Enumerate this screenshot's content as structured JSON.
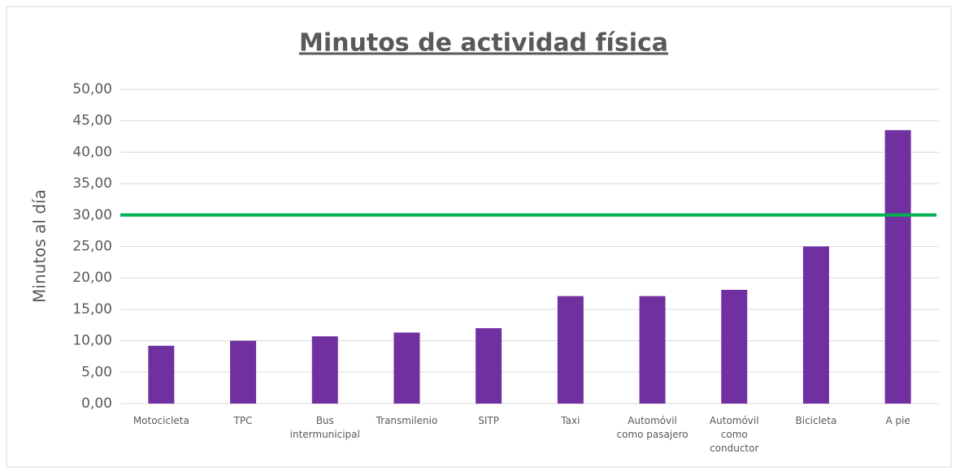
{
  "chart_data": {
    "type": "bar",
    "title": "Minutos de actividad física",
    "y_label": "Minutos al día",
    "categories": [
      "Motocicleta",
      "TPC",
      "Bus intermunicipal",
      "Transmilenio",
      "SITP",
      "Taxi",
      "Automóvil como pasajero",
      "Automóvil como conductor",
      "Bicicleta",
      "A pie"
    ],
    "values": [
      9.2,
      10.0,
      10.7,
      11.3,
      12.0,
      17.1,
      17.1,
      18.1,
      25.0,
      43.5
    ],
    "color": "#7030a0",
    "reference_line": {
      "value": 30,
      "color": "#00b050"
    },
    "ylim": [
      0,
      50
    ],
    "yticks": [
      {
        "value": 0,
        "label": "0,00"
      },
      {
        "value": 5,
        "label": "5,00"
      },
      {
        "value": 10,
        "label": "10,00"
      },
      {
        "value": 15,
        "label": "15,00"
      },
      {
        "value": 20,
        "label": "20,00"
      },
      {
        "value": 25,
        "label": "25,00"
      },
      {
        "value": 30,
        "label": "30,00"
      },
      {
        "value": 35,
        "label": "35,00"
      },
      {
        "value": 40,
        "label": "40,00"
      },
      {
        "value": 45,
        "label": "45,00"
      },
      {
        "value": 50,
        "label": "50,00"
      }
    ],
    "grid": true
  }
}
